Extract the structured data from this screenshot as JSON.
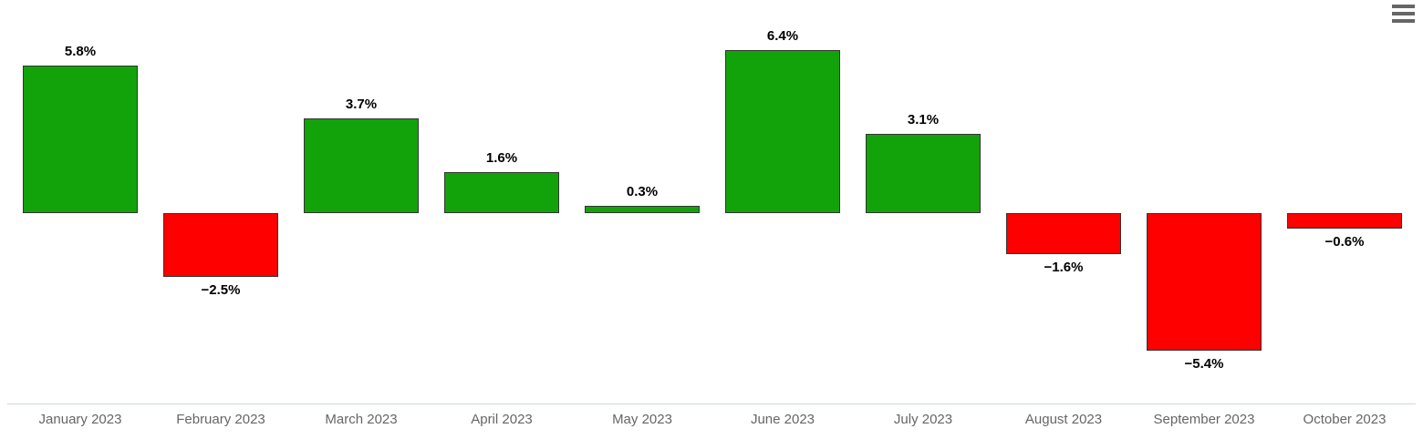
{
  "icons": {
    "hamburger_menu_icon": "≡"
  },
  "chart_data": {
    "type": "bar",
    "title": "",
    "xlabel": "",
    "ylabel": "",
    "categories": [
      "January 2023",
      "February 2023",
      "March 2023",
      "April 2023",
      "May 2023",
      "June 2023",
      "July 2023",
      "August 2023",
      "September 2023",
      "October 2023"
    ],
    "values": [
      5.8,
      -2.5,
      3.7,
      1.6,
      0.3,
      6.4,
      3.1,
      -1.6,
      -5.4,
      -0.6
    ],
    "value_labels": [
      "5.8%",
      "−2.5%",
      "3.7%",
      "1.6%",
      "0.3%",
      "6.4%",
      "3.1%",
      "−1.6%",
      "−5.4%",
      "−0.6%"
    ],
    "ylim": [
      -7.5,
      8
    ],
    "grid": false,
    "legend": false,
    "colors": {
      "positive": "#12a30b",
      "negative": "#fe0000",
      "bar_border": "#333333",
      "axis_line": "#ccd6eb",
      "tick_label": "#666666",
      "data_label": "#000000",
      "menu_icon": "#666666"
    }
  }
}
